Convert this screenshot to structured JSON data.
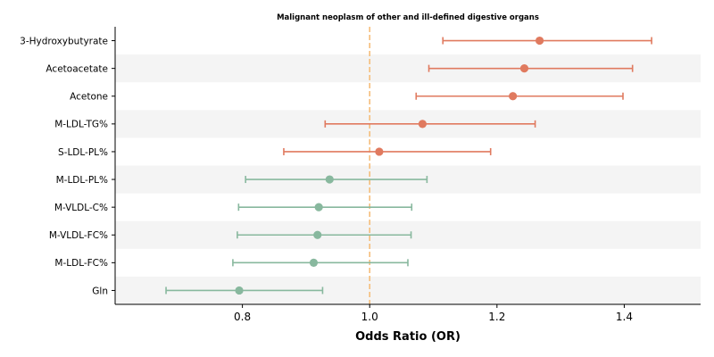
{
  "chart_data": {
    "type": "forest",
    "title": "Malignant neoplasm of other and ill-defined digestive organs",
    "xlabel": "Odds Ratio (OR)",
    "xlim": [
      0.6,
      1.52
    ],
    "xticks": [
      0.8,
      1.0,
      1.2,
      1.4
    ],
    "xtick_labels": [
      "0.8",
      "1.0",
      "1.2",
      "1.4"
    ],
    "reference_line": 1.0,
    "reference_color": "#f5bd7a",
    "colors": {
      "risk": "#e07a5f",
      "protective": "#88b89e",
      "band": "#f4f4f4"
    },
    "grid": false,
    "rows": [
      {
        "label": "3-Hydroxybutyrate",
        "or": 1.267,
        "lower": 1.115,
        "upper": 1.443,
        "group": "risk"
      },
      {
        "label": "Acetoacetate",
        "or": 1.243,
        "lower": 1.093,
        "upper": 1.413,
        "group": "risk"
      },
      {
        "label": "Acetone",
        "or": 1.225,
        "lower": 1.073,
        "upper": 1.398,
        "group": "risk"
      },
      {
        "label": "M-LDL-TG%",
        "or": 1.083,
        "lower": 0.93,
        "upper": 1.26,
        "group": "risk"
      },
      {
        "label": "S-LDL-PL%",
        "or": 1.015,
        "lower": 0.865,
        "upper": 1.19,
        "group": "risk"
      },
      {
        "label": "M-LDL-PL%",
        "or": 0.937,
        "lower": 0.805,
        "upper": 1.09,
        "group": "protective"
      },
      {
        "label": "M-VLDL-C%",
        "or": 0.92,
        "lower": 0.794,
        "upper": 1.066,
        "group": "protective"
      },
      {
        "label": "M-VLDL-FC%",
        "or": 0.918,
        "lower": 0.792,
        "upper": 1.065,
        "group": "protective"
      },
      {
        "label": "M-LDL-FC%",
        "or": 0.912,
        "lower": 0.785,
        "upper": 1.06,
        "group": "protective"
      },
      {
        "label": "Gln",
        "or": 0.795,
        "lower": 0.68,
        "upper": 0.926,
        "group": "protective"
      }
    ]
  }
}
